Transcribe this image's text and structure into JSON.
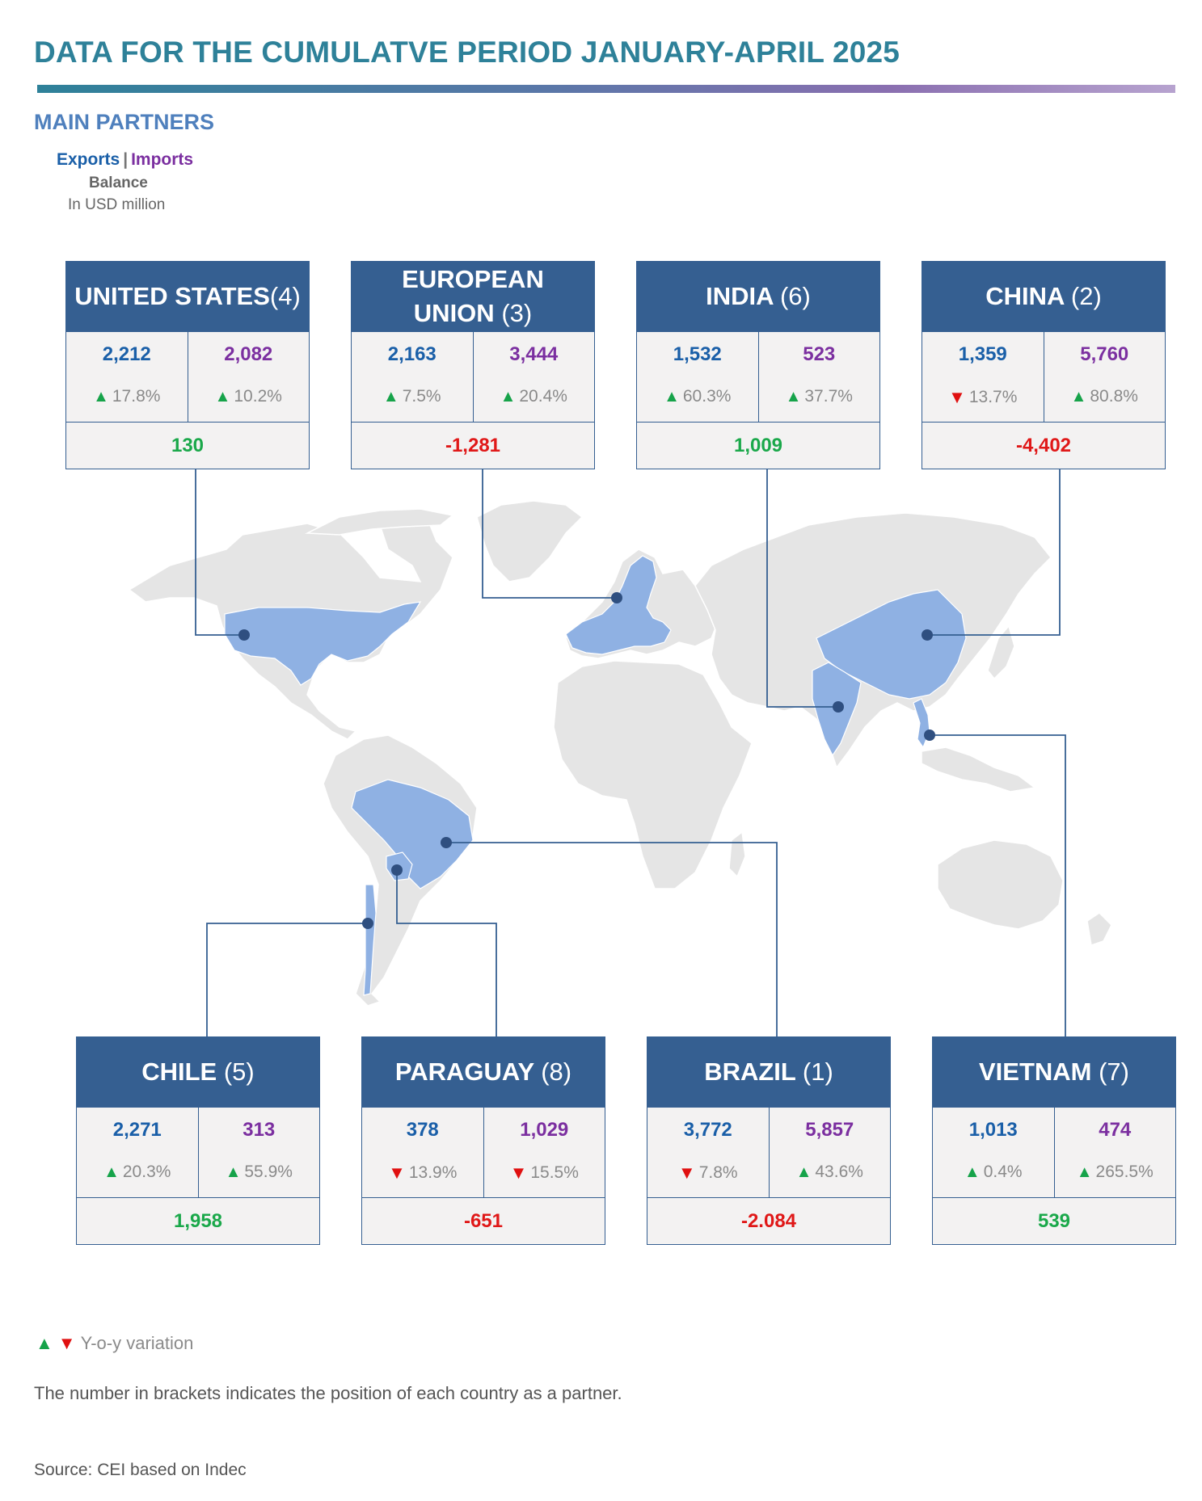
{
  "header": {
    "title": "DATA FOR THE CUMULATVE PERIOD JANUARY-APRIL 2025",
    "subtitle": "MAIN PARTNERS"
  },
  "legend": {
    "exports": "Exports",
    "separator": "|",
    "imports": "Imports",
    "balance": "Balance",
    "unit": "In USD million"
  },
  "colors": {
    "title": "#2e8199",
    "card_header": "#355f91",
    "exports": "#1a5fa8",
    "imports": "#7b2fa0",
    "positive": "#1aa84a",
    "negative": "#e01818",
    "map_land": "#e5e5e5",
    "map_highlight": "#8fb1e3"
  },
  "partners": [
    {
      "id": "united-states",
      "name": "UNITED STATES",
      "rank": "(4)",
      "exports": "2,212",
      "imports": "2,082",
      "exports_var": "17.8%",
      "exports_dir": "up",
      "imports_var": "10.2%",
      "imports_dir": "up",
      "balance": "130",
      "balance_sign": "pos"
    },
    {
      "id": "european-union",
      "name": "EUROPEAN UNION",
      "rank": "(3)",
      "exports": "2,163",
      "imports": "3,444",
      "exports_var": "7.5%",
      "exports_dir": "up",
      "imports_var": "20.4%",
      "imports_dir": "up",
      "balance": "-1,281",
      "balance_sign": "neg"
    },
    {
      "id": "india",
      "name": "INDIA",
      "rank": "(6)",
      "exports": "1,532",
      "imports": "523",
      "exports_var": "60.3%",
      "exports_dir": "up",
      "imports_var": "37.7%",
      "imports_dir": "up",
      "balance": "1,009",
      "balance_sign": "pos"
    },
    {
      "id": "china",
      "name": "CHINA",
      "rank": "(2)",
      "exports": "1,359",
      "imports": "5,760",
      "exports_var": "13.7%",
      "exports_dir": "down",
      "imports_var": "80.8%",
      "imports_dir": "up",
      "balance": "-4,402",
      "balance_sign": "neg"
    },
    {
      "id": "chile",
      "name": "CHILE",
      "rank": "(5)",
      "exports": "2,271",
      "imports": "313",
      "exports_var": "20.3%",
      "exports_dir": "up",
      "imports_var": "55.9%",
      "imports_dir": "up",
      "balance": "1,958",
      "balance_sign": "pos"
    },
    {
      "id": "paraguay",
      "name": "PARAGUAY",
      "rank": "(8)",
      "exports": "378",
      "imports": "1,029",
      "exports_var": "13.9%",
      "exports_dir": "down",
      "imports_var": "15.5%",
      "imports_dir": "down",
      "balance": "-651",
      "balance_sign": "neg"
    },
    {
      "id": "brazil",
      "name": "BRAZIL",
      "rank": "(1)",
      "exports": "3,772",
      "imports": "5,857",
      "exports_var": "7.8%",
      "exports_dir": "down",
      "imports_var": "43.6%",
      "imports_dir": "up",
      "balance": "-2.084",
      "balance_sign": "neg"
    },
    {
      "id": "vietnam",
      "name": "VIETNAM",
      "rank": "(7)",
      "exports": "1,013",
      "imports": "474",
      "exports_var": "0.4%",
      "exports_dir": "up",
      "imports_var": "265.5%",
      "imports_dir": "up",
      "balance": "539",
      "balance_sign": "pos"
    }
  ],
  "footer": {
    "arrow_up": "▲",
    "arrow_down": "▼",
    "variation_label": "Y-o-y variation",
    "note": "The number in brackets indicates the position of each country as a partner.",
    "source": "Source: CEI based on Indec"
  }
}
